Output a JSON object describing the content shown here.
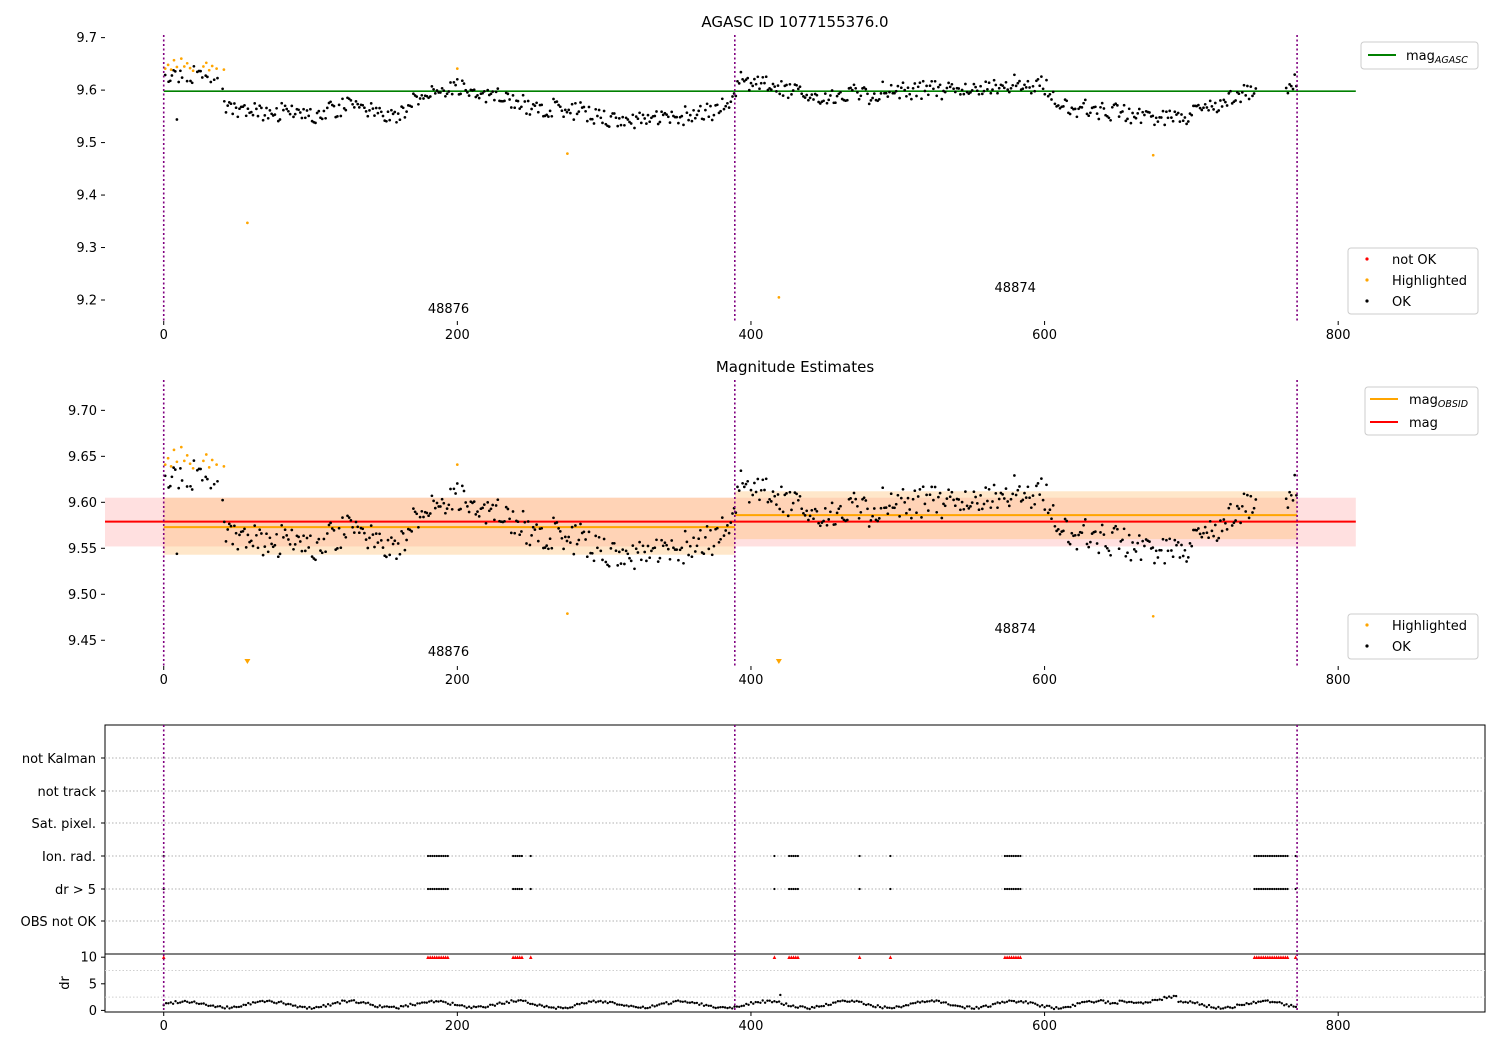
{
  "figure": {
    "obsid_boundaries": [
      0,
      389,
      772
    ],
    "obsid_labels": [
      {
        "text": "48876",
        "x": 194
      },
      {
        "text": "48874",
        "x": 580
      }
    ]
  },
  "chart_data": [
    {
      "id": "top",
      "type": "scatter",
      "title": "AGASC ID 1077155376.0",
      "xlim": [
        -40,
        900
      ],
      "ylim": [
        9.16,
        9.705
      ],
      "xticks": [
        0,
        200,
        400,
        600,
        800
      ],
      "yticks": [
        9.2,
        9.3,
        9.4,
        9.5,
        9.6,
        9.7
      ],
      "ytick_labels": [
        "9.2",
        "9.3",
        "9.4",
        "9.5",
        "9.6",
        "9.7"
      ],
      "obsid_label_y": [
        9.175,
        9.215
      ],
      "lines": [
        {
          "name": "mag_AGASC",
          "y": 9.598,
          "x": [
            0,
            812
          ],
          "color": "#008000"
        }
      ],
      "legend_upper": {
        "position": "upper-right",
        "entries": [
          {
            "main": "mag",
            "sub": "AGASC",
            "color": "#008000"
          }
        ]
      },
      "legend_lower": {
        "position": "lower-right",
        "entries": [
          {
            "label": "not OK",
            "color": "#ff0000"
          },
          {
            "label": "Highlighted",
            "color": "#ffa500"
          },
          {
            "label": "OK",
            "color": "#000000"
          }
        ]
      },
      "highlighted_points": [
        [
          1,
          9.641
        ],
        [
          3,
          9.648
        ],
        [
          5,
          9.639
        ],
        [
          7,
          9.657
        ],
        [
          9,
          9.644
        ],
        [
          12,
          9.66
        ],
        [
          14,
          9.645
        ],
        [
          16,
          9.651
        ],
        [
          18,
          9.642
        ],
        [
          20,
          9.637
        ],
        [
          27,
          9.645
        ],
        [
          29,
          9.652
        ],
        [
          31,
          9.638
        ],
        [
          33,
          9.646
        ],
        [
          36,
          9.641
        ],
        [
          41,
          9.639
        ],
        [
          57,
          9.347
        ],
        [
          200,
          9.641
        ],
        [
          275,
          9.479
        ],
        [
          419,
          9.205
        ],
        [
          674,
          9.476
        ]
      ]
    },
    {
      "id": "middle",
      "type": "scatter",
      "title": "Magnitude Estimates",
      "xlim": [
        -40,
        900
      ],
      "ylim": [
        9.422,
        9.733
      ],
      "xticks": [
        0,
        200,
        400,
        600,
        800
      ],
      "yticks": [
        9.45,
        9.5,
        9.55,
        9.6,
        9.65,
        9.7
      ],
      "ytick_labels": [
        "9.45",
        "9.50",
        "9.55",
        "9.60",
        "9.65",
        "9.70"
      ],
      "obsid_label_y": [
        9.433,
        9.458
      ],
      "bands": [
        {
          "x": [
            -40,
            812
          ],
          "y": [
            9.552,
            9.605
          ],
          "color": "#ff9999",
          "opacity": 0.3
        },
        {
          "x": [
            0,
            389
          ],
          "y": [
            9.543,
            9.605
          ],
          "color": "#ffbb66",
          "opacity": 0.35
        },
        {
          "x": [
            389,
            772
          ],
          "y": [
            9.56,
            9.612
          ],
          "color": "#ffbb66",
          "opacity": 0.35
        }
      ],
      "lines": [
        {
          "name": "mag_OBSID",
          "segments": [
            {
              "x": [
                0,
                389
              ],
              "y": 9.573
            },
            {
              "x": [
                389,
                772
              ],
              "y": 9.586
            }
          ],
          "color": "#ffa500"
        },
        {
          "name": "mag",
          "segments": [
            {
              "x": [
                -40,
                812
              ],
              "y": 9.579
            }
          ],
          "color": "#ff0000"
        }
      ],
      "legend_upper": {
        "position": "upper-right",
        "entries": [
          {
            "main": "mag",
            "sub": "OBSID",
            "color": "#ffa500"
          },
          {
            "main": "mag",
            "sub": "",
            "color": "#ff0000"
          }
        ]
      },
      "legend_lower": {
        "position": "lower-right",
        "entries": [
          {
            "label": "Highlighted",
            "color": "#ffa500"
          },
          {
            "label": "OK",
            "color": "#000000"
          }
        ]
      },
      "highlighted_points": [
        [
          1,
          9.641
        ],
        [
          3,
          9.648
        ],
        [
          5,
          9.639
        ],
        [
          7,
          9.657
        ],
        [
          9,
          9.644
        ],
        [
          12,
          9.66
        ],
        [
          14,
          9.645
        ],
        [
          16,
          9.651
        ],
        [
          18,
          9.642
        ],
        [
          20,
          9.637
        ],
        [
          27,
          9.645
        ],
        [
          29,
          9.652
        ],
        [
          31,
          9.638
        ],
        [
          33,
          9.646
        ],
        [
          36,
          9.641
        ],
        [
          41,
          9.639
        ],
        [
          200,
          9.641
        ],
        [
          275,
          9.479
        ],
        [
          674,
          9.476
        ]
      ],
      "offscale_low_x": [
        57,
        419
      ]
    },
    {
      "id": "flags",
      "type": "scatter",
      "xlim": [
        -40,
        900
      ],
      "categories": [
        "not Kalman",
        "not track",
        "Sat. pixel.",
        "Ion. rad.",
        "dr > 5",
        "OBS not OK"
      ],
      "flag_clusters": [
        [
          0,
          1
        ],
        [
          180,
          194
        ],
        [
          238,
          244
        ],
        [
          250,
          250
        ],
        [
          416,
          416
        ],
        [
          426,
          432
        ],
        [
          474,
          474
        ],
        [
          495,
          495
        ],
        [
          573,
          584
        ],
        [
          743,
          766
        ],
        [
          771,
          771
        ]
      ]
    },
    {
      "id": "dr",
      "type": "scatter",
      "ylabel": "dr",
      "xlim": [
        -40,
        900
      ],
      "ylim": [
        -0.3,
        10.6
      ],
      "xticks": [
        0,
        200,
        400,
        600,
        800
      ],
      "yticks": [
        0,
        5,
        10
      ],
      "ytick_labels": [
        "0",
        "5",
        "10"
      ],
      "clip_value": 10
    }
  ]
}
